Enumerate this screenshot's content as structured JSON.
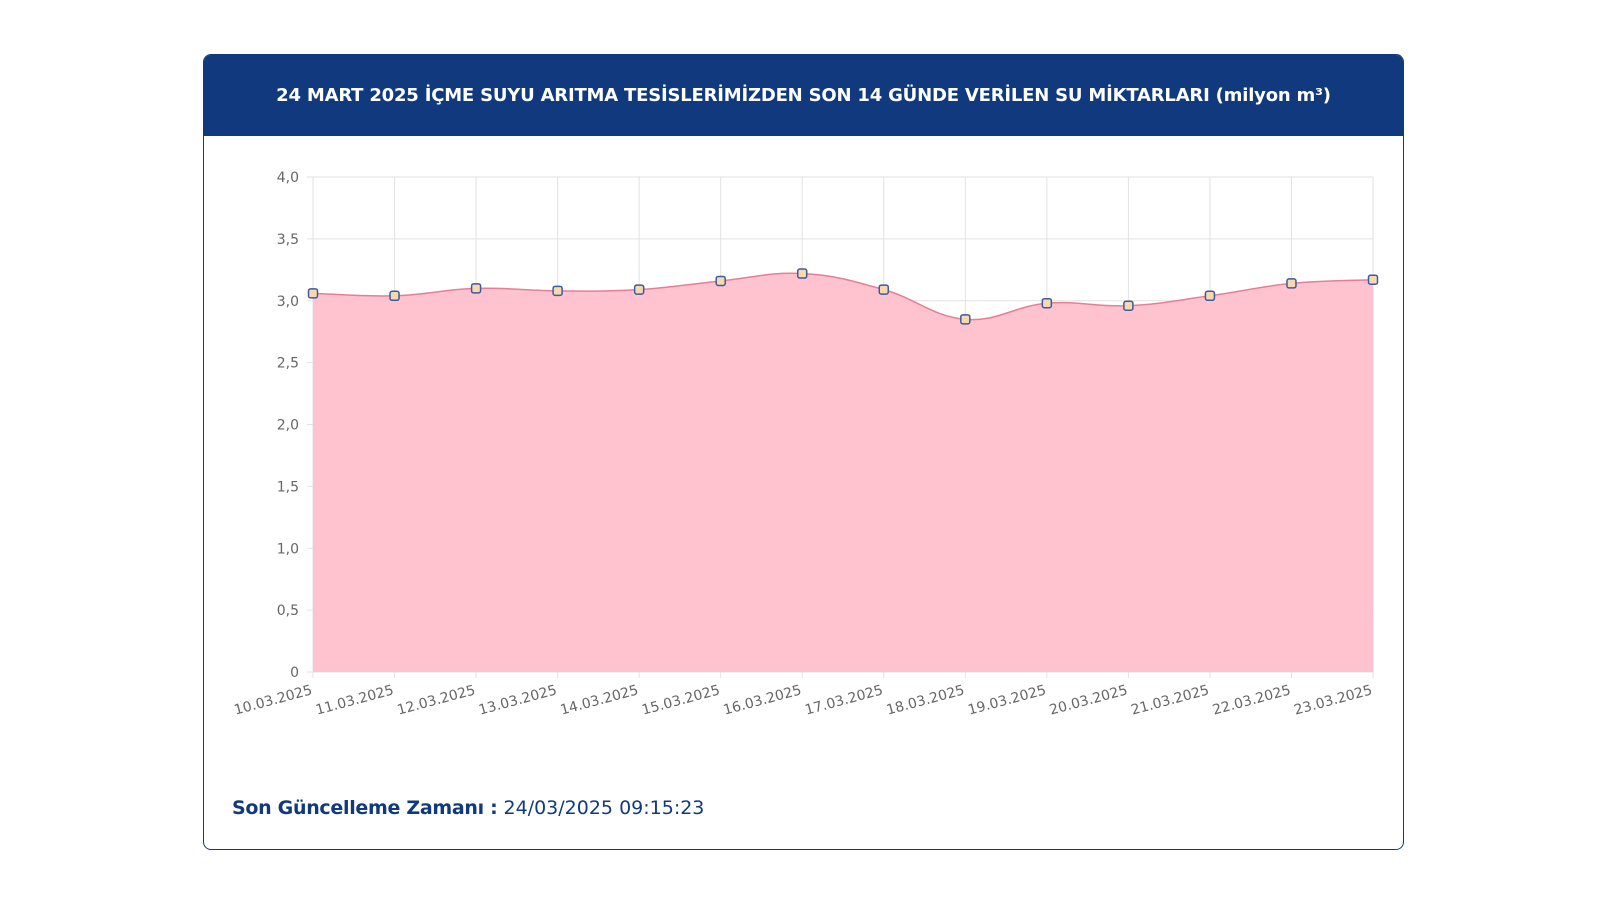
{
  "header": {
    "title": "24 MART 2025 İÇME SUYU ARITMA TESİSLERİMİZDEN SON 14 GÜNDE VERİLEN SU MİKTARLARI (milyon m³)"
  },
  "footer": {
    "label": "Son Güncelleme Zamanı :",
    "value": "24/03/2025 09:15:23"
  },
  "colors": {
    "header_bg": "#103a7d",
    "area_fill": "#ffc0cd",
    "line": "#e57f98",
    "marker_border": "#3d5a9e",
    "grid": "#e2e2e2"
  },
  "chart_data": {
    "type": "area",
    "categories": [
      "10.03.2025",
      "11.03.2025",
      "12.03.2025",
      "13.03.2025",
      "14.03.2025",
      "15.03.2025",
      "16.03.2025",
      "17.03.2025",
      "18.03.2025",
      "19.03.2025",
      "20.03.2025",
      "21.03.2025",
      "22.03.2025",
      "23.03.2025"
    ],
    "values": [
      3.06,
      3.04,
      3.1,
      3.08,
      3.09,
      3.16,
      3.22,
      3.09,
      2.85,
      2.98,
      2.96,
      3.04,
      3.14,
      3.17
    ],
    "ylim": [
      0,
      4.0
    ],
    "yticks": [
      "0",
      "0,5",
      "1,0",
      "1,5",
      "2,0",
      "2,5",
      "3,0",
      "3,5",
      "4,0"
    ],
    "grid": true,
    "legend": "none"
  }
}
